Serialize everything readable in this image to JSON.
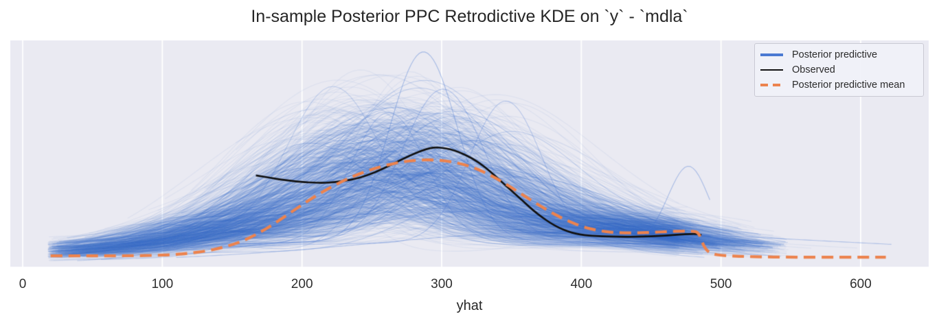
{
  "window": {
    "background": "#ffffff"
  },
  "title": {
    "text": "In-sample Posterior PPC Retrodictive KDE on `y` - `mdla`",
    "color": "#262626"
  },
  "axes": {
    "xlabel": "yhat",
    "x_ticks": [
      "0",
      "100",
      "200",
      "300",
      "400",
      "500",
      "600"
    ],
    "x_tick_values": [
      0,
      100,
      200,
      300,
      400,
      500,
      600
    ],
    "plot_background": "#eaeaf2",
    "grid_color": "#ffffff",
    "tick_label_color": "#2e2e2e",
    "label_color": "#262626"
  },
  "legend": {
    "background": "rgba(240,241,248,0.92)",
    "border_color": "#c9c9d3",
    "text_color": "#2b2b2b",
    "entries": [
      {
        "label": "Posterior predictive",
        "color": "#4a79d2",
        "style": "solid",
        "swatch_height": 3.4
      },
      {
        "label": "Observed",
        "color": "#111111",
        "style": "solid",
        "swatch_height": 2.8
      },
      {
        "label": "Posterior predictive mean",
        "color": "#ec834e",
        "style": "dashed",
        "swatch_height": 4.2
      }
    ]
  },
  "chart_data": {
    "type": "line",
    "subtype": "ppc-kde",
    "title": "In-sample Posterior PPC Retrodictive KDE on `y` - `mdla`",
    "xlabel": "yhat",
    "ylabel": "",
    "xlim": [
      -10,
      650
    ],
    "x_ticks": [
      0,
      100,
      200,
      300,
      400,
      500,
      600
    ],
    "grid": "vertical only, white gridlines on lavender background",
    "legend_position": "upper right",
    "density_units": "relative density, observed KDE peak = 1.0",
    "series": [
      {
        "name": "Observed",
        "color": "#111111",
        "style": "solid",
        "line_width": 2.7,
        "points": [
          [
            167,
            0.76
          ],
          [
            172,
            0.75
          ],
          [
            178,
            0.738
          ],
          [
            184,
            0.726
          ],
          [
            190,
            0.716
          ],
          [
            196,
            0.708
          ],
          [
            202,
            0.702
          ],
          [
            208,
            0.698
          ],
          [
            214,
            0.696
          ],
          [
            220,
            0.698
          ],
          [
            226,
            0.706
          ],
          [
            232,
            0.716
          ],
          [
            238,
            0.73
          ],
          [
            244,
            0.75
          ],
          [
            250,
            0.776
          ],
          [
            256,
            0.806
          ],
          [
            262,
            0.84
          ],
          [
            268,
            0.876
          ],
          [
            274,
            0.912
          ],
          [
            280,
            0.945
          ],
          [
            286,
            0.974
          ],
          [
            292,
            0.995
          ],
          [
            296,
            1.0
          ],
          [
            300,
            0.997
          ],
          [
            306,
            0.985
          ],
          [
            312,
            0.962
          ],
          [
            318,
            0.93
          ],
          [
            324,
            0.89
          ],
          [
            330,
            0.84
          ],
          [
            336,
            0.78
          ],
          [
            342,
            0.715
          ],
          [
            348,
            0.65
          ],
          [
            354,
            0.585
          ],
          [
            360,
            0.52
          ],
          [
            366,
            0.455
          ],
          [
            372,
            0.4
          ],
          [
            378,
            0.35
          ],
          [
            384,
            0.31
          ],
          [
            390,
            0.28
          ],
          [
            396,
            0.26
          ],
          [
            402,
            0.247
          ],
          [
            410,
            0.24
          ],
          [
            420,
            0.235
          ],
          [
            430,
            0.233
          ],
          [
            440,
            0.234
          ],
          [
            450,
            0.238
          ],
          [
            460,
            0.244
          ],
          [
            470,
            0.252
          ],
          [
            478,
            0.258
          ],
          [
            483,
            0.258
          ],
          [
            486,
            0.248
          ]
        ]
      },
      {
        "name": "Posterior predictive mean",
        "color": "#ec834e",
        "style": "dashed",
        "line_width": 4.2,
        "dash": [
          17,
          9
        ],
        "points": [
          [
            20,
            0.07
          ],
          [
            35,
            0.07
          ],
          [
            50,
            0.07
          ],
          [
            65,
            0.07
          ],
          [
            80,
            0.071
          ],
          [
            95,
            0.074
          ],
          [
            108,
            0.08
          ],
          [
            120,
            0.092
          ],
          [
            132,
            0.112
          ],
          [
            142,
            0.138
          ],
          [
            152,
            0.172
          ],
          [
            162,
            0.22
          ],
          [
            172,
            0.285
          ],
          [
            182,
            0.36
          ],
          [
            192,
            0.442
          ],
          [
            202,
            0.524
          ],
          [
            212,
            0.6
          ],
          [
            222,
            0.668
          ],
          [
            232,
            0.728
          ],
          [
            242,
            0.778
          ],
          [
            252,
            0.82
          ],
          [
            262,
            0.853
          ],
          [
            272,
            0.877
          ],
          [
            282,
            0.891
          ],
          [
            292,
            0.894
          ],
          [
            302,
            0.886
          ],
          [
            312,
            0.866
          ],
          [
            322,
            0.832
          ],
          [
            332,
            0.78
          ],
          [
            342,
            0.715
          ],
          [
            352,
            0.64
          ],
          [
            362,
            0.562
          ],
          [
            372,
            0.487
          ],
          [
            382,
            0.418
          ],
          [
            392,
            0.36
          ],
          [
            402,
            0.315
          ],
          [
            412,
            0.286
          ],
          [
            422,
            0.271
          ],
          [
            432,
            0.266
          ],
          [
            442,
            0.267
          ],
          [
            452,
            0.272
          ],
          [
            462,
            0.278
          ],
          [
            472,
            0.282
          ],
          [
            479,
            0.282
          ],
          [
            484,
            0.272
          ],
          [
            487,
            0.17
          ],
          [
            490,
            0.11
          ],
          [
            494,
            0.085
          ],
          [
            500,
            0.074
          ],
          [
            508,
            0.068
          ],
          [
            518,
            0.064
          ],
          [
            530,
            0.061
          ],
          [
            545,
            0.059
          ],
          [
            562,
            0.058
          ],
          [
            580,
            0.058
          ],
          [
            600,
            0.058
          ],
          [
            618,
            0.058
          ]
        ]
      },
      {
        "name": "Posterior predictive",
        "color": "#4676d2",
        "style": "solid ensemble of KDE draws",
        "draws": 950,
        "alpha": 0.08,
        "highlight_every": 12,
        "highlight_alpha": 0.26,
        "line_width": 1.1,
        "support": [
          18,
          628
        ],
        "envelope": {
          "x": [
            20,
            60,
            100,
            140,
            180,
            220,
            260,
            300,
            340,
            380,
            420,
            460,
            500,
            540,
            580,
            620
          ],
          "center_density": [
            0.13,
            0.15,
            0.2,
            0.3,
            0.45,
            0.62,
            0.78,
            0.83,
            0.66,
            0.42,
            0.3,
            0.28,
            0.18,
            0.16,
            0.17,
            0.18
          ]
        },
        "generator": {
          "seed": 1234,
          "components": {
            "main": {
              "a": [
                0.66,
                0.27,
                0.17,
                1.42
              ],
              "c": [
                270,
                34,
                208,
                348
              ],
              "w": [
                58,
                13,
                32,
                90
              ]
            },
            "left": {
              "a": [
                0.1,
                0.06,
                0.0,
                0.32
              ],
              "c": [
                158,
                32,
                80,
                240
              ],
              "w": [
                46,
                12,
                24,
                80
              ]
            },
            "right": {
              "a": [
                0.1,
                0.055,
                0.01,
                0.3
              ],
              "c": [
                422,
                27,
                350,
                480
              ],
              "w": [
                55,
                14,
                30,
                95
              ]
            },
            "base": {
              "a": [
                0.21,
                0.055,
                0.06,
                0.36
              ],
              "c": [
                305,
                25,
                240,
                370
              ],
              "w": [
                255,
                35,
                185,
                340
              ]
            }
          },
          "support_start": [
            18,
            140
          ],
          "support_end": [
            470,
            80
          ],
          "long_tail_prob": 0.004,
          "long_tail_extra": 130,
          "specials": [
            {
              "comps": [
                [
                  1.62,
                  287,
                  24
                ],
                [
                  0.2,
                  300,
                  255
                ]
              ],
              "start": 150,
              "end": 462,
              "alpha": 0.42
            },
            {
              "comps": [
                [
                  1.3,
                  301,
                  29
                ],
                [
                  0.2,
                  300,
                  255
                ]
              ],
              "start": 120,
              "end": 480,
              "alpha": 0.34
            },
            {
              "comps": [
                [
                  1.12,
                  262,
                  27
                ],
                [
                  0.18,
                  290,
                  250
                ]
              ],
              "start": 90,
              "end": 470,
              "alpha": 0.3
            },
            {
              "comps": [
                [
                  1.22,
                  346,
                  26
                ],
                [
                  0.18,
                  300,
                  255
                ]
              ],
              "start": 120,
              "end": 500,
              "alpha": 0.32
            },
            {
              "comps": [
                [
                  0.3,
                  315,
                  70
                ],
                [
                  0.7,
                  477,
                  15
                ],
                [
                  0.15,
                  300,
                  255
                ]
              ],
              "start": 70,
              "end": 492,
              "alpha": 0.4
            },
            {
              "comps": [
                [
                  0.1,
                  360,
                  110
                ],
                [
                  0.2,
                  480,
                  220
                ]
              ],
              "start": 110,
              "end": 622,
              "alpha": 0.35
            }
          ]
        }
      }
    ]
  }
}
